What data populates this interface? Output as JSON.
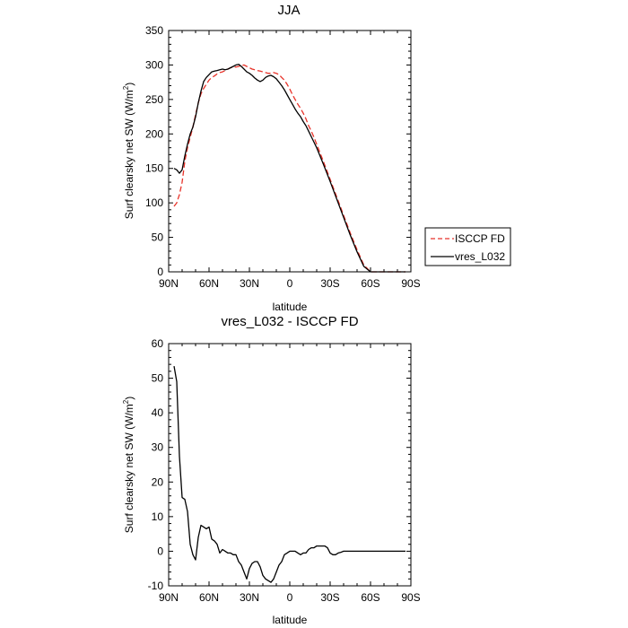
{
  "chart_data": [
    {
      "type": "line",
      "title": "JJA",
      "xlabel": "latitude",
      "ylabel_main": "Surf clearsky net SW (W/m",
      "ylabel_sup": "2",
      "ylabel_end": ")",
      "xlim": [
        90,
        -90
      ],
      "ylim": [
        0,
        350
      ],
      "xticks": [
        {
          "value": 90,
          "label": "90N"
        },
        {
          "value": 60,
          "label": "60N"
        },
        {
          "value": 30,
          "label": "30N"
        },
        {
          "value": 0,
          "label": "0"
        },
        {
          "value": -30,
          "label": "30S"
        },
        {
          "value": -60,
          "label": "60S"
        },
        {
          "value": -90,
          "label": "90S"
        }
      ],
      "yticks": [
        0,
        50,
        100,
        150,
        200,
        250,
        300,
        350
      ],
      "legend_position": "right",
      "series": [
        {
          "name": "ISCCP FD",
          "color": "#e8332a",
          "dash": "dashed",
          "x": [
            86,
            84,
            82,
            80,
            78,
            76,
            74,
            72,
            70,
            68,
            66,
            64,
            62,
            60,
            58,
            56,
            54,
            52,
            50,
            48,
            46,
            44,
            42,
            40,
            38,
            36,
            34,
            32,
            30,
            28,
            26,
            24,
            22,
            20,
            18,
            16,
            14,
            12,
            10,
            8,
            6,
            4,
            2,
            0,
            -2,
            -4,
            -6,
            -8,
            -10,
            -12,
            -14,
            -16,
            -18,
            -20,
            -25,
            -30,
            -35,
            -40,
            -45,
            -50,
            -55,
            -60,
            -62,
            -64,
            -66,
            -70,
            -75,
            -80,
            -86
          ],
          "y": [
            95,
            100,
            112,
            130,
            160,
            180,
            195,
            210,
            228,
            245,
            258,
            266,
            272,
            278,
            282,
            284,
            287,
            289,
            290,
            292,
            294,
            296,
            297,
            297,
            298,
            299,
            300,
            298,
            296,
            294,
            293,
            292,
            291,
            290,
            289,
            288,
            288,
            289,
            288,
            286,
            282,
            278,
            272,
            265,
            257,
            250,
            243,
            237,
            230,
            222,
            212,
            204,
            195,
            185,
            160,
            134,
            108,
            82,
            56,
            32,
            10,
            0,
            0,
            -3,
            -4,
            -5,
            -6,
            -6,
            -6
          ]
        },
        {
          "name": "vres_L032",
          "color": "#000000",
          "dash": "solid",
          "x": [
            86,
            84,
            82,
            80,
            78,
            76,
            74,
            72,
            70,
            68,
            66,
            64,
            62,
            60,
            58,
            56,
            54,
            52,
            50,
            48,
            46,
            44,
            42,
            40,
            38,
            36,
            34,
            32,
            30,
            28,
            26,
            24,
            22,
            20,
            18,
            16,
            14,
            12,
            10,
            8,
            6,
            4,
            2,
            0,
            -2,
            -4,
            -6,
            -8,
            -10,
            -12,
            -14,
            -16,
            -18,
            -20,
            -25,
            -30,
            -35,
            -40,
            -45,
            -50,
            -55,
            -60,
            -62,
            -64,
            -66,
            -70,
            -75,
            -80,
            -86
          ],
          "y": [
            150,
            148,
            143,
            148,
            168,
            185,
            200,
            210,
            225,
            245,
            262,
            276,
            282,
            286,
            290,
            291,
            292,
            293,
            294,
            293,
            294,
            296,
            298,
            300,
            301,
            298,
            294,
            290,
            288,
            285,
            281,
            278,
            276,
            278,
            282,
            284,
            285,
            283,
            280,
            275,
            270,
            264,
            257,
            250,
            243,
            236,
            230,
            225,
            218,
            212,
            204,
            196,
            188,
            180,
            156,
            131,
            105,
            79,
            53,
            29,
            8,
            0,
            -2,
            -3,
            -4,
            -5,
            -6,
            -6,
            -6
          ]
        }
      ]
    },
    {
      "type": "line",
      "title": "vres_L032 - ISCCP FD",
      "xlabel": "latitude",
      "ylabel_main": "Surf clearsky net SW (W/m",
      "ylabel_sup": "2",
      "ylabel_end": ")",
      "xlim": [
        90,
        -90
      ],
      "ylim": [
        -10,
        60
      ],
      "xticks": [
        {
          "value": 90,
          "label": "90N"
        },
        {
          "value": 60,
          "label": "60N"
        },
        {
          "value": 30,
          "label": "30N"
        },
        {
          "value": 0,
          "label": "0"
        },
        {
          "value": -30,
          "label": "30S"
        },
        {
          "value": -60,
          "label": "60S"
        },
        {
          "value": -90,
          "label": "90S"
        }
      ],
      "yticks": [
        -10,
        0,
        10,
        20,
        30,
        40,
        50,
        60
      ],
      "series": [
        {
          "name": "vres_L032 - ISCCP FD",
          "color": "#000000",
          "dash": "solid",
          "x": [
            86,
            84,
            82,
            80,
            78,
            76,
            74,
            72,
            70,
            68,
            66,
            64,
            62,
            60,
            58,
            56,
            54,
            52,
            50,
            48,
            46,
            44,
            42,
            40,
            38,
            36,
            34,
            32,
            30,
            28,
            26,
            24,
            22,
            20,
            18,
            16,
            14,
            12,
            10,
            8,
            6,
            4,
            2,
            0,
            -2,
            -4,
            -6,
            -8,
            -10,
            -12,
            -14,
            -16,
            -18,
            -20,
            -22,
            -24,
            -26,
            -28,
            -30,
            -32,
            -34,
            -36,
            -38,
            -40,
            -42,
            -44,
            -46,
            -48,
            -50,
            -52,
            -54,
            -56,
            -58,
            -60,
            -62,
            -64,
            -66,
            -68,
            -70,
            -72,
            -75,
            -80,
            -86
          ],
          "y": [
            53.5,
            49,
            27.5,
            15.5,
            15,
            11.5,
            2,
            -1,
            -2.5,
            4,
            7.5,
            7,
            6.5,
            7,
            3.5,
            3,
            2,
            -0.5,
            0.5,
            0,
            -0.5,
            -0.5,
            -1,
            -1,
            -3,
            -4,
            -6,
            -8,
            -5,
            -3.5,
            -3,
            -3,
            -4.5,
            -7,
            -8,
            -8.5,
            -9,
            -8,
            -6,
            -4,
            -3,
            -1,
            -0.5,
            0,
            0,
            0,
            -0.5,
            -1,
            -0.5,
            -0.5,
            0.5,
            1,
            1,
            1.5,
            1.5,
            1.5,
            1.5,
            1,
            -0.5,
            -1,
            -1,
            -0.5,
            -0.3,
            0,
            0,
            0,
            0,
            0,
            0,
            0,
            0,
            0,
            0,
            0,
            0,
            0,
            0,
            0,
            0,
            0,
            0,
            0,
            0
          ]
        }
      ]
    }
  ]
}
